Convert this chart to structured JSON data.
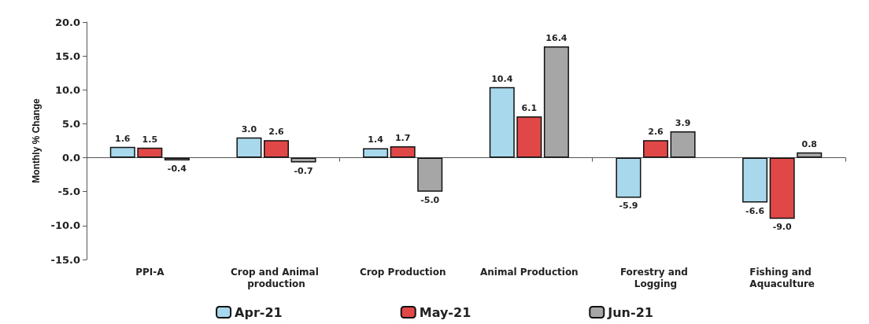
{
  "chart_data": {
    "type": "bar",
    "ylabel": "Monthly % Change",
    "categories": [
      "PPI-A",
      "Crop and Animal production",
      "Crop Production",
      "Animal Production",
      "Forestry and Logging",
      "Fishing and Aquaculture"
    ],
    "series": [
      {
        "name": "Apr-21",
        "color": "#a8d8ec",
        "values": [
          1.6,
          3.0,
          1.4,
          10.4,
          -5.9,
          -6.6
        ],
        "value_labels": [
          "1.6",
          "3.0",
          "1.4",
          "10.4",
          "-5.9",
          "-6.6"
        ]
      },
      {
        "name": "May-21",
        "color": "#e04848",
        "values": [
          1.5,
          2.6,
          1.7,
          6.1,
          2.6,
          -9.0
        ],
        "value_labels": [
          "1.5",
          "2.6",
          "1.7",
          "6.1",
          "2.6",
          "-9.0"
        ]
      },
      {
        "name": "Jun-21",
        "color": "#a6a6a6",
        "values": [
          -0.4,
          -0.7,
          -5.0,
          16.4,
          3.9,
          0.8
        ],
        "value_labels": [
          "-0.4",
          "-0.7",
          "-5.0",
          "16.4",
          "3.9",
          "0.8"
        ]
      }
    ],
    "ylim": [
      -15,
      20
    ],
    "yticks": [
      {
        "value": -15,
        "label": "-15.0"
      },
      {
        "value": -10,
        "label": "-10.0"
      },
      {
        "value": -5,
        "label": "-5.0"
      },
      {
        "value": 0,
        "label": "0.0"
      },
      {
        "value": 5,
        "label": "5.0"
      },
      {
        "value": 10,
        "label": "10.0"
      },
      {
        "value": 15,
        "label": "15.0"
      },
      {
        "value": 20,
        "label": "20.0"
      }
    ],
    "legend": "bottom"
  }
}
